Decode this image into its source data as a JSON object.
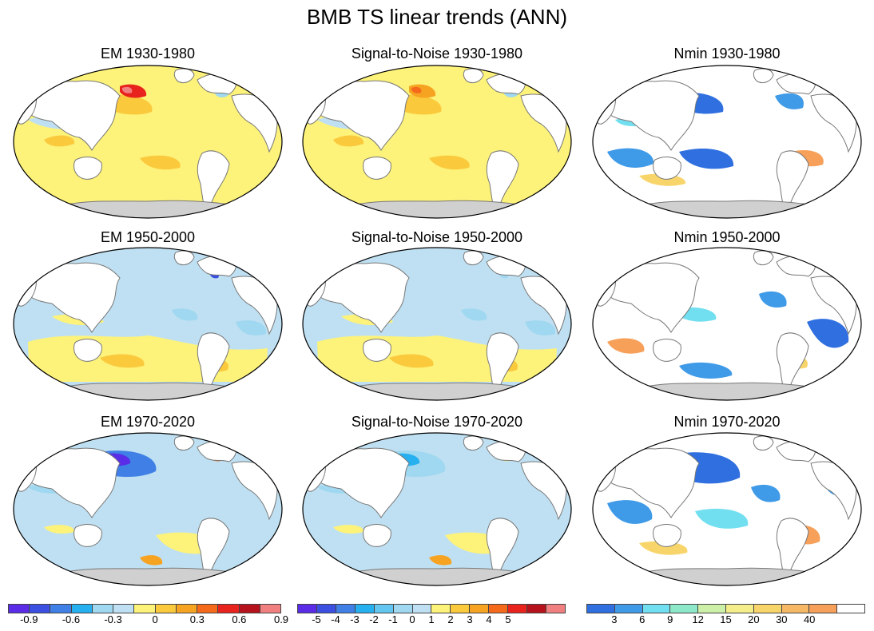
{
  "figure": {
    "title": "BMB TS linear trends (ANN)"
  },
  "panels": [
    {
      "title": "EM 1930-1980",
      "kind": "em",
      "pattern": "a"
    },
    {
      "title": "Signal-to-Noise 1930-1980",
      "kind": "sn",
      "pattern": "a"
    },
    {
      "title": "Nmin 1930-1980",
      "kind": "nmin",
      "pattern": "a"
    },
    {
      "title": "EM 1950-2000",
      "kind": "em",
      "pattern": "b"
    },
    {
      "title": "Signal-to-Noise 1950-2000",
      "kind": "sn",
      "pattern": "b"
    },
    {
      "title": "Nmin 1950-2000",
      "kind": "nmin",
      "pattern": "b"
    },
    {
      "title": "EM 1970-2020",
      "kind": "em",
      "pattern": "c"
    },
    {
      "title": "Signal-to-Noise 1970-2020",
      "kind": "sn",
      "pattern": "c"
    },
    {
      "title": "Nmin 1970-2020",
      "kind": "nmin",
      "pattern": "c"
    }
  ],
  "colorbars": [
    {
      "name": "em",
      "colors": [
        "#5a2ce8",
        "#3b4fe0",
        "#3f7fe6",
        "#27b0f0",
        "#9fd8f0",
        "#bfe0f2",
        "#fdf27a",
        "#fbc93c",
        "#f7a322",
        "#f46a1a",
        "#e8221c",
        "#b5121c",
        "#f08080"
      ],
      "labels": [
        "-0.9",
        "-0.6",
        "-0.3",
        "0",
        "0.3",
        "0.6",
        "0.9"
      ],
      "label_boundaries": [
        1,
        3,
        5,
        7,
        9,
        11,
        13
      ]
    },
    {
      "name": "sn",
      "colors": [
        "#5a2ce8",
        "#3b4fe0",
        "#3f7fe6",
        "#27b0f0",
        "#62c6f0",
        "#9fd8f0",
        "#bfe0f2",
        "#fdf27a",
        "#fbc93c",
        "#f7a322",
        "#f46a1a",
        "#e8221c",
        "#b5121c",
        "#f08080"
      ],
      "labels": [
        "-5",
        "-4",
        "-3",
        "-2",
        "-1",
        "0",
        "1",
        "2",
        "3",
        "4",
        "5"
      ],
      "label_boundaries": [
        1,
        2,
        3,
        4,
        5,
        6,
        7,
        8,
        9,
        10,
        11
      ]
    },
    {
      "name": "nmin",
      "colors": [
        "#2f6fe0",
        "#3f9ae8",
        "#72dff0",
        "#8ce8c8",
        "#cdf0a8",
        "#f3ee8a",
        "#f8d56a",
        "#f6b865",
        "#f7a05a",
        "#ffffff"
      ],
      "labels": [
        "3",
        "6",
        "9",
        "12",
        "15",
        "20",
        "30",
        "40"
      ],
      "label_boundaries": [
        1,
        2,
        3,
        4,
        5,
        6,
        7,
        8
      ]
    }
  ],
  "colors": {
    "land": "#ffffff",
    "antarctica": "#d0d0d0",
    "em_base_a": "#fdf27a",
    "em_base_b": "#bfe0f2",
    "em_base_c": "#bfe0f2",
    "nmin_base": "#ffffff"
  }
}
